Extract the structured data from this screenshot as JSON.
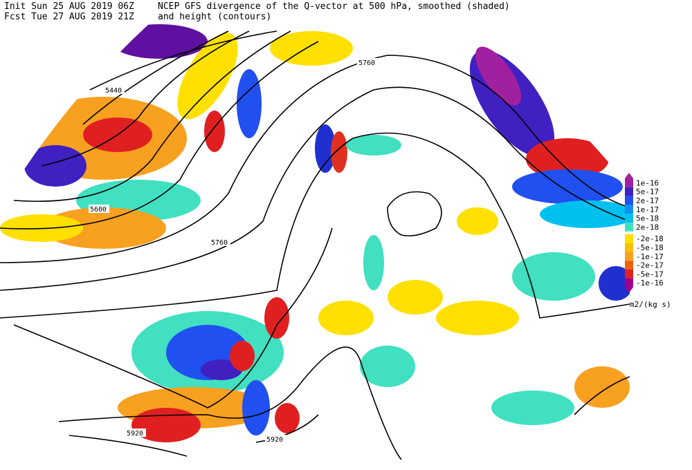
{
  "header": {
    "init": "Init  Sun 25 AUG 2019 06Z",
    "fcst": "Fcst Tue 27 AUG 2019 21Z",
    "title": "NCEP GFS divergence of the Q-vector at 500 hPa, smoothed (shaded)",
    "subtitle": "and height (contours)"
  },
  "contour_labels": [
    "5440",
    "5760",
    "5600",
    "5760",
    "5920",
    "5920"
  ],
  "legend": {
    "labels": [
      "1e-16",
      "5e-17",
      "2e-17",
      "1e-17",
      "5e-18",
      "2e-18",
      "-2e-18",
      "-5e-18",
      "-1e-17",
      "-2e-17",
      "-5e-17",
      "-1e-16"
    ],
    "units": "m2/(kg s)"
  }
}
